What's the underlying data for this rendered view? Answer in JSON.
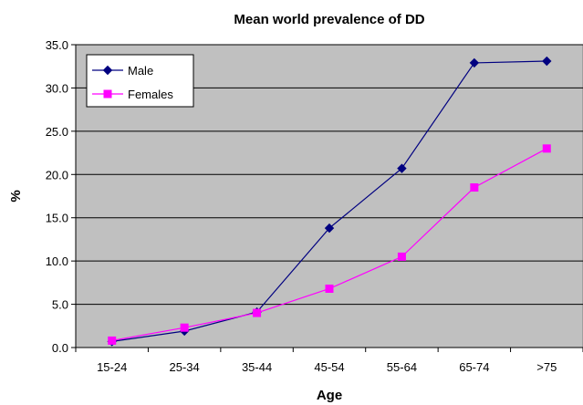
{
  "chart_data": {
    "type": "line",
    "title": "Mean world prevalence of DD",
    "xlabel": "Age",
    "ylabel": "%",
    "categories": [
      "15-24",
      "25-34",
      "35-44",
      "45-54",
      "55-64",
      "65-74",
      ">75"
    ],
    "ylim": [
      0,
      35
    ],
    "ytick_labels": [
      "0.0",
      "5.0",
      "10.0",
      "15.0",
      "20.0",
      "25.0",
      "30.0",
      "35.0"
    ],
    "grid": true,
    "legend_position": "top-left",
    "plot_background": "#c0c0c0",
    "series": [
      {
        "name": "Male",
        "color": "#000080",
        "marker": "diamond",
        "values": [
          0.7,
          1.9,
          4.1,
          13.8,
          20.7,
          32.9,
          33.1
        ]
      },
      {
        "name": "Females",
        "color": "#ff00ff",
        "marker": "square",
        "values": [
          0.8,
          2.3,
          4.0,
          6.8,
          10.5,
          18.5,
          23.0
        ]
      }
    ]
  }
}
